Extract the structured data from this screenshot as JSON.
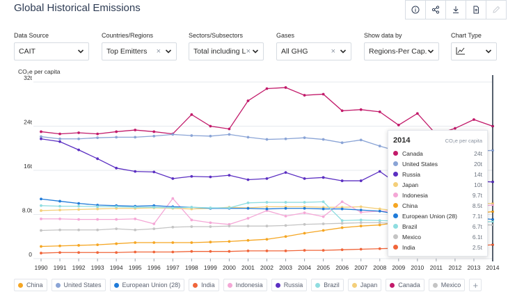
{
  "page": {
    "title": "Global Historical Emissions",
    "toolbar": [
      {
        "icon": "info-icon"
      },
      {
        "icon": "share-icon"
      },
      {
        "icon": "download-icon"
      },
      {
        "icon": "document-icon"
      },
      {
        "icon": "edit-icon"
      }
    ]
  },
  "filters": {
    "data_source": {
      "label": "Data Source",
      "value": "CAIT"
    },
    "countries": {
      "label": "Countries/Regions",
      "value": "Top Emitters",
      "clear": "×"
    },
    "sectors": {
      "label": "Sectors/Subsectors",
      "value": "Total including LU...",
      "clear": "×"
    },
    "gases": {
      "label": "Gases",
      "value": "All GHG",
      "clear": "×"
    },
    "show_by": {
      "label": "Show data by",
      "value": "Regions-Per Cap..."
    },
    "chart_type": {
      "label": "Chart Type",
      "icon": "line-chart-icon"
    }
  },
  "chart_data": {
    "type": "line",
    "ylabel": "CO₂e per capita",
    "ylim": [
      0,
      32
    ],
    "yticks": [
      0,
      8,
      16,
      24,
      32
    ],
    "ytick_labels": [
      "0",
      "8.0t",
      "16t",
      "24t",
      "32t"
    ],
    "x": [
      1990,
      1991,
      1992,
      1993,
      1994,
      1995,
      1996,
      1997,
      1998,
      1999,
      2000,
      2001,
      2002,
      2003,
      2004,
      2005,
      2006,
      2007,
      2008,
      2009,
      2010,
      2011,
      2012,
      2013,
      2014
    ],
    "grid": true,
    "series": [
      {
        "name": "Canada",
        "color": "#c21a6a",
        "values": [
          23.0,
          22.6,
          22.8,
          22.6,
          23.0,
          23.3,
          23.0,
          22.6,
          26.1,
          24.0,
          23.5,
          28.6,
          30.8,
          31.0,
          29.6,
          29.8,
          26.8,
          27.0,
          26.6,
          24.2,
          26.3,
          22.5,
          23.6,
          25.2,
          24.0
        ]
      },
      {
        "name": "United States",
        "color": "#8aa4d6",
        "values": [
          22.1,
          21.7,
          21.7,
          21.9,
          22.0,
          22.0,
          22.2,
          22.5,
          22.3,
          22.2,
          22.5,
          22.0,
          21.6,
          21.7,
          21.9,
          21.6,
          21.0,
          21.5,
          20.4,
          19.4,
          19.8,
          19.3,
          19.0,
          19.5,
          19.6
        ]
      },
      {
        "name": "Russia",
        "color": "#5b2fc2",
        "values": [
          21.7,
          21.2,
          19.7,
          18.1,
          16.4,
          15.8,
          15.7,
          14.5,
          14.9,
          14.8,
          15.1,
          14.3,
          14.5,
          15.6,
          14.5,
          14.7,
          14.1,
          14.1,
          15.8,
          13.4,
          14.0,
          14.6,
          14.3,
          14.0,
          13.9
        ]
      },
      {
        "name": "Japan",
        "color": "#f4cf7a",
        "values": [
          8.7,
          8.8,
          8.9,
          9.0,
          9.1,
          9.1,
          9.2,
          9.1,
          9.0,
          9.1,
          9.3,
          9.2,
          9.4,
          9.4,
          9.4,
          9.3,
          9.3,
          9.4,
          9.0,
          8.6,
          9.0,
          9.3,
          9.7,
          9.9,
          10.0
        ]
      },
      {
        "name": "Indonesia",
        "color": "#f4a7d6",
        "values": [
          7.2,
          7.2,
          7.1,
          7.1,
          7.1,
          7.2,
          6.3,
          10.9,
          7.0,
          6.5,
          6.2,
          7.3,
          8.7,
          7.7,
          8.3,
          7.6,
          10.3,
          8.4,
          8.6,
          8.6,
          8.9,
          8.9,
          9.2,
          9.4,
          9.7
        ]
      },
      {
        "name": "China",
        "color": "#f5a623",
        "values": [
          2.2,
          2.3,
          2.4,
          2.5,
          2.7,
          2.9,
          2.9,
          2.9,
          2.9,
          3.0,
          3.1,
          3.3,
          3.5,
          4.0,
          4.6,
          5.1,
          5.6,
          5.9,
          6.1,
          6.6,
          7.0,
          7.6,
          7.9,
          8.2,
          8.5
        ]
      },
      {
        "name": "European Union (28)",
        "color": "#1f7bd9",
        "values": [
          10.8,
          10.4,
          10.0,
          9.7,
          9.6,
          9.5,
          9.6,
          9.4,
          9.3,
          9.1,
          9.1,
          9.1,
          9.0,
          9.1,
          9.1,
          9.0,
          9.0,
          8.8,
          8.6,
          8.0,
          8.1,
          7.8,
          7.6,
          7.4,
          7.1
        ]
      },
      {
        "name": "Brazil",
        "color": "#8fdde0",
        "values": [
          9.6,
          9.5,
          9.5,
          9.4,
          9.4,
          9.3,
          9.3,
          9.2,
          9.3,
          9.2,
          9.2,
          10.1,
          10.2,
          10.2,
          10.2,
          10.3,
          6.9,
          7.0,
          6.9,
          6.8,
          6.7,
          6.6,
          6.5,
          6.6,
          6.7
        ]
      },
      {
        "name": "Mexico",
        "color": "#c4c4c4",
        "values": [
          5.1,
          5.2,
          5.2,
          5.2,
          5.4,
          5.2,
          5.4,
          5.7,
          5.8,
          5.8,
          5.9,
          5.9,
          5.9,
          6.0,
          6.2,
          6.3,
          6.4,
          6.5,
          6.5,
          6.3,
          6.2,
          6.2,
          6.2,
          6.1,
          6.1
        ]
      },
      {
        "name": "India",
        "color": "#f0653a",
        "values": [
          1.0,
          1.1,
          1.1,
          1.1,
          1.1,
          1.2,
          1.2,
          1.2,
          1.3,
          1.3,
          1.3,
          1.4,
          1.4,
          1.4,
          1.5,
          1.5,
          1.6,
          1.7,
          1.8,
          1.9,
          2.0,
          2.1,
          2.2,
          2.3,
          2.5
        ]
      }
    ]
  },
  "tooltip": {
    "year": "2014",
    "unit": "CO₂e per capita",
    "rows": [
      {
        "name": "Canada",
        "value": "24t",
        "color": "#c21a6a"
      },
      {
        "name": "United States",
        "value": "20t",
        "color": "#8aa4d6"
      },
      {
        "name": "Russia",
        "value": "14t",
        "color": "#5b2fc2"
      },
      {
        "name": "Japan",
        "value": "10t",
        "color": "#f4cf7a"
      },
      {
        "name": "Indonesia",
        "value": "9.7t",
        "color": "#f4a7d6"
      },
      {
        "name": "China",
        "value": "8.5t",
        "color": "#f5a623"
      },
      {
        "name": "European Union (28)",
        "value": "7.1t",
        "color": "#1f7bd9"
      },
      {
        "name": "Brazil",
        "value": "6.7t",
        "color": "#8fdde0"
      },
      {
        "name": "Mexico",
        "value": "6.1t",
        "color": "#c4c4c4"
      },
      {
        "name": "India",
        "value": "2.5t",
        "color": "#f0653a"
      }
    ]
  },
  "legend": {
    "items": [
      {
        "name": "China",
        "color": "#f5a623"
      },
      {
        "name": "United States",
        "color": "#8aa4d6"
      },
      {
        "name": "European Union (28)",
        "color": "#1f7bd9"
      },
      {
        "name": "India",
        "color": "#f0653a"
      },
      {
        "name": "Indonesia",
        "color": "#f4a7d6"
      },
      {
        "name": "Russia",
        "color": "#5b2fc2"
      },
      {
        "name": "Brazil",
        "color": "#8fdde0"
      },
      {
        "name": "Japan",
        "color": "#f4cf7a"
      },
      {
        "name": "Canada",
        "color": "#c21a6a"
      },
      {
        "name": "Mexico",
        "color": "#c4c4c4"
      }
    ],
    "add_label": "+"
  }
}
